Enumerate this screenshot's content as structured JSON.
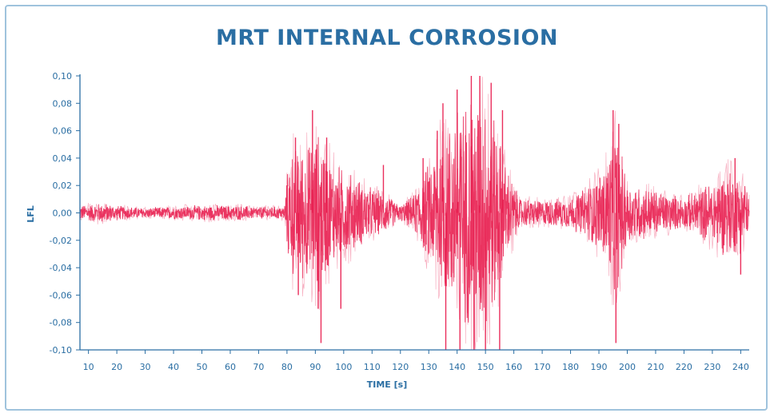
{
  "chart_data": {
    "type": "line",
    "title": "MRT INTERNAL CORROSION",
    "xlabel": "TIME [s]",
    "ylabel": "LFL",
    "xlim": [
      7,
      243
    ],
    "ylim": [
      -0.1,
      0.1
    ],
    "x_ticks": [
      10,
      20,
      30,
      40,
      50,
      60,
      70,
      80,
      90,
      100,
      110,
      120,
      130,
      140,
      150,
      160,
      170,
      180,
      190,
      200,
      210,
      220,
      230,
      240
    ],
    "y_ticks": [
      "0,10",
      "0,08",
      "0,06",
      "0,04",
      "0,02",
      "0,00",
      "-0,02",
      "-0,04",
      "-0,06",
      "-0,08",
      "-0,10"
    ],
    "y_tick_values": [
      0.1,
      0.08,
      0.06,
      0.04,
      0.02,
      0,
      -0.02,
      -0.04,
      -0.06,
      -0.08,
      -0.1
    ],
    "grid": false,
    "series": [
      {
        "color": "#e8174a",
        "envelope": [
          {
            "x": 7,
            "amp": 0.006
          },
          {
            "x": 15,
            "amp": 0.008
          },
          {
            "x": 20,
            "amp": 0.006
          },
          {
            "x": 30,
            "amp": 0.004
          },
          {
            "x": 40,
            "amp": 0.005
          },
          {
            "x": 50,
            "amp": 0.006
          },
          {
            "x": 60,
            "amp": 0.006
          },
          {
            "x": 70,
            "amp": 0.005
          },
          {
            "x": 79,
            "amp": 0.005
          },
          {
            "x": 81,
            "amp": 0.05
          },
          {
            "x": 88,
            "amp": 0.055
          },
          {
            "x": 91,
            "amp": 0.065
          },
          {
            "x": 96,
            "amp": 0.04
          },
          {
            "x": 100,
            "amp": 0.035
          },
          {
            "x": 110,
            "amp": 0.02
          },
          {
            "x": 115,
            "amp": 0.015
          },
          {
            "x": 120,
            "amp": 0.006
          },
          {
            "x": 125,
            "amp": 0.015
          },
          {
            "x": 130,
            "amp": 0.04
          },
          {
            "x": 136,
            "amp": 0.07
          },
          {
            "x": 142,
            "amp": 0.085
          },
          {
            "x": 148,
            "amp": 0.1
          },
          {
            "x": 153,
            "amp": 0.08
          },
          {
            "x": 157,
            "amp": 0.04
          },
          {
            "x": 162,
            "amp": 0.012
          },
          {
            "x": 170,
            "amp": 0.01
          },
          {
            "x": 180,
            "amp": 0.012
          },
          {
            "x": 185,
            "amp": 0.02
          },
          {
            "x": 190,
            "amp": 0.03
          },
          {
            "x": 193,
            "amp": 0.045
          },
          {
            "x": 196,
            "amp": 0.07
          },
          {
            "x": 200,
            "amp": 0.025
          },
          {
            "x": 210,
            "amp": 0.018
          },
          {
            "x": 220,
            "amp": 0.012
          },
          {
            "x": 230,
            "amp": 0.025
          },
          {
            "x": 235,
            "amp": 0.035
          },
          {
            "x": 241,
            "amp": 0.03
          },
          {
            "x": 243,
            "amp": 0.012
          }
        ],
        "spikes": [
          {
            "x": 83,
            "y": 0.055
          },
          {
            "x": 84,
            "y": -0.06
          },
          {
            "x": 89,
            "y": 0.075
          },
          {
            "x": 91,
            "y": -0.07
          },
          {
            "x": 92,
            "y": -0.095
          },
          {
            "x": 94,
            "y": 0.055
          },
          {
            "x": 99,
            "y": -0.07
          },
          {
            "x": 114,
            "y": 0.035
          },
          {
            "x": 128,
            "y": 0.04
          },
          {
            "x": 133,
            "y": 0.06
          },
          {
            "x": 135,
            "y": 0.08
          },
          {
            "x": 136,
            "y": -0.1
          },
          {
            "x": 140,
            "y": 0.09
          },
          {
            "x": 141,
            "y": -0.1
          },
          {
            "x": 145,
            "y": 0.1
          },
          {
            "x": 146,
            "y": -0.1
          },
          {
            "x": 148,
            "y": 0.1
          },
          {
            "x": 150,
            "y": -0.1
          },
          {
            "x": 152,
            "y": 0.095
          },
          {
            "x": 155,
            "y": -0.1
          },
          {
            "x": 156,
            "y": 0.075
          },
          {
            "x": 195,
            "y": 0.075
          },
          {
            "x": 196,
            "y": -0.095
          },
          {
            "x": 197,
            "y": 0.065
          },
          {
            "x": 238,
            "y": 0.04
          },
          {
            "x": 240,
            "y": -0.045
          }
        ]
      }
    ]
  }
}
